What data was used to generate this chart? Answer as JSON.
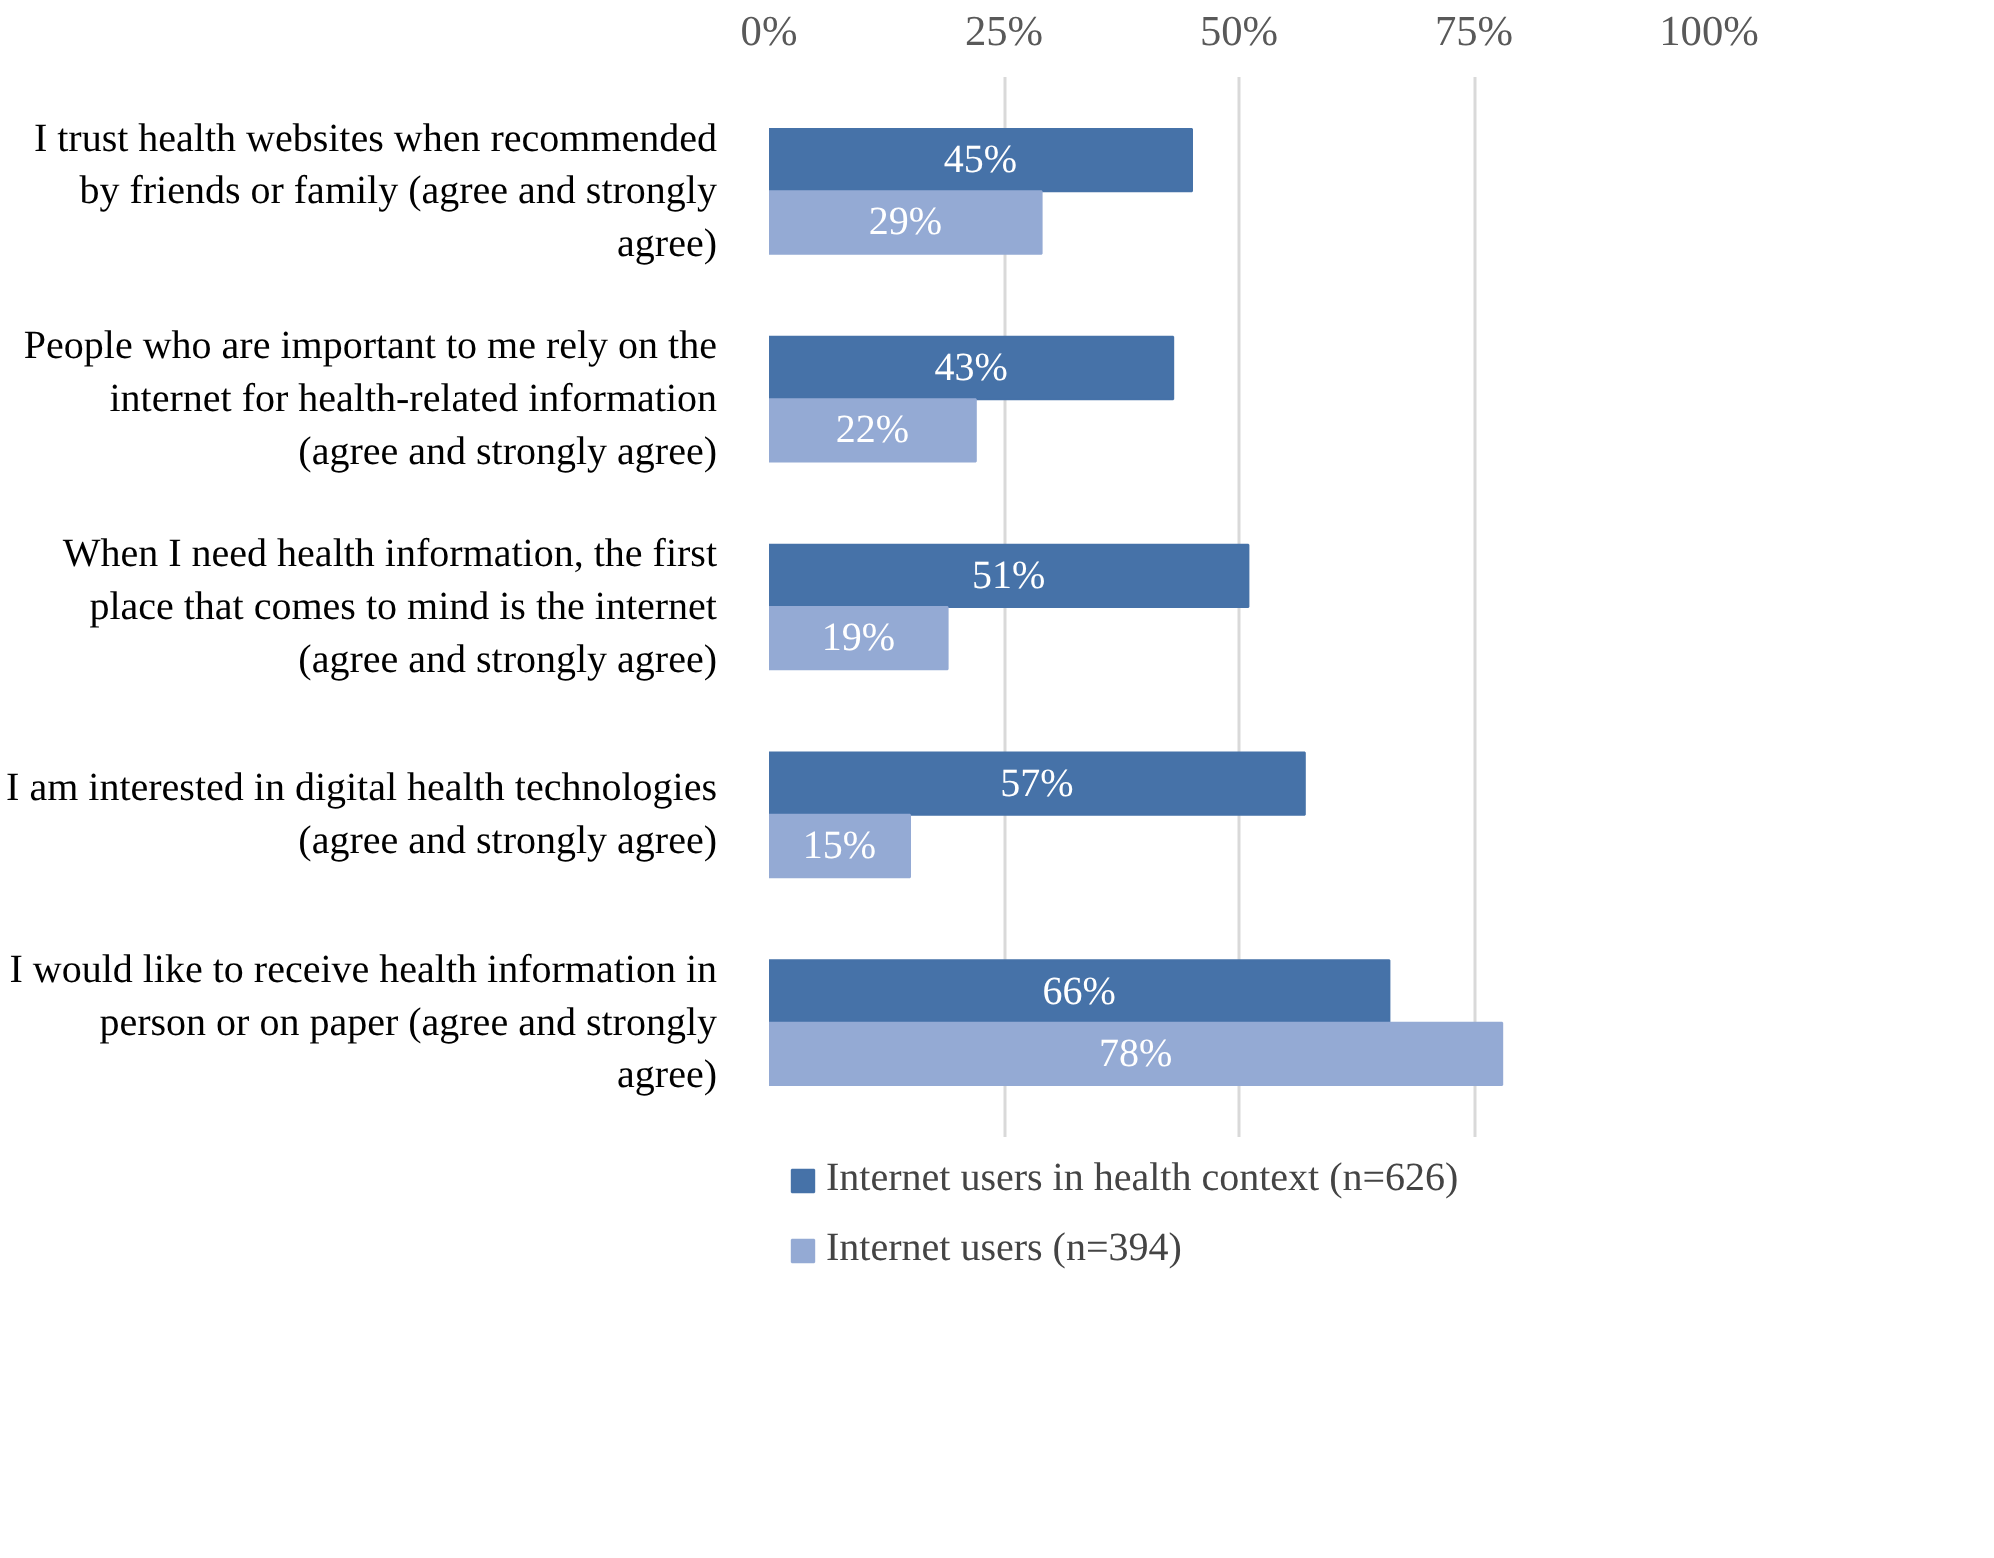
{
  "chart_data": {
    "type": "bar",
    "orientation": "horizontal",
    "categories": [
      "I trust health websites when recommended\nby friends or family (agree and strongly\nagree)",
      "People who are important to me rely on the\ninternet for health-related information\n(agree and strongly agree)",
      "When I need health information, the first\nplace that comes to mind is the internet\n(agree and strongly agree)",
      "I am interested in digital health technologies\n(agree and strongly agree)",
      "I would like to receive health information in\nperson or on paper (agree and strongly\nagree)"
    ],
    "series": [
      {
        "name": "Internet users in health context (n=626)",
        "color": "#4672a8",
        "values": [
          45,
          43,
          51,
          57,
          66
        ],
        "value_labels": [
          "45%",
          "43%",
          "51%",
          "57%",
          "66%"
        ]
      },
      {
        "name": "Internet users (n=394)",
        "color": "#94aad4",
        "values": [
          29,
          22,
          19,
          15,
          78
        ],
        "value_labels": [
          "29%",
          "22%",
          "19%",
          "15%",
          "78%"
        ]
      }
    ],
    "xlim": [
      0,
      100
    ],
    "xticks": [
      {
        "value": 0,
        "label": "0%"
      },
      {
        "value": 25,
        "label": "25%"
      },
      {
        "value": 50,
        "label": "50%"
      },
      {
        "value": 75,
        "label": "75%"
      },
      {
        "value": 100,
        "label": "100%"
      }
    ],
    "grid": "x",
    "legend": "bottom"
  }
}
